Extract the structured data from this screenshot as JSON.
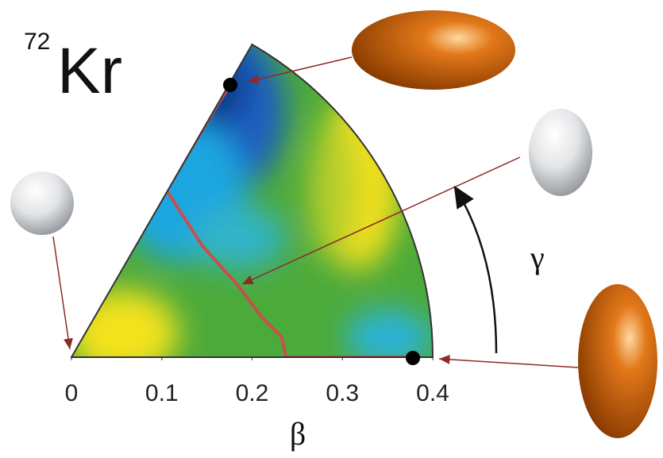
{
  "chart_data": {
    "type": "sector",
    "title_superscript": "72",
    "title": "Kr",
    "xlabel": "β",
    "ylabel": "γ",
    "xlim": [
      0,
      0.4
    ],
    "xticks": [
      0,
      0.1,
      0.2,
      0.3,
      0.4
    ]
  }
}
